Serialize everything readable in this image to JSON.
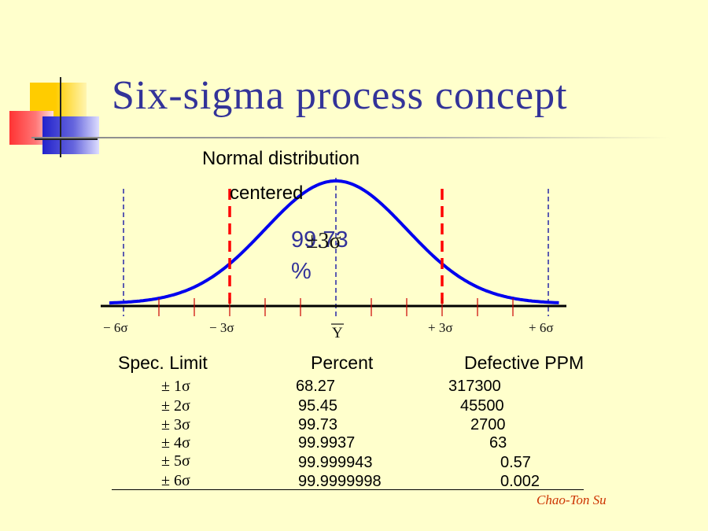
{
  "title": "Six-sigma process concept",
  "chart": {
    "heading_line1": "Normal distribution",
    "heading_line2": "centered",
    "inner_percent": "99.73",
    "inner_percent_unit": "%",
    "inner_sigma": "±3σ",
    "axis_labels": {
      "minus6": "− 6σ",
      "minus3": "− 3σ",
      "mean": "Y",
      "plus3": "+ 3σ",
      "plus6": "+ 6σ"
    },
    "colors": {
      "curve": "#0000EE",
      "spec_limit": "#FF0000",
      "guide": "#3333AA",
      "axis": "#000000",
      "tick": "#CC0000"
    }
  },
  "table": {
    "headers": {
      "spec": "Spec. Limit",
      "percent": "Percent",
      "ppm": "Defective PPM"
    },
    "rows": [
      {
        "spec": "± 1σ",
        "percent": "68.27",
        "ppm": "317300"
      },
      {
        "spec": "± 2σ",
        "percent": "95.45",
        "ppm": "45500"
      },
      {
        "spec": "± 3σ",
        "percent": "99.73",
        "ppm": "2700"
      },
      {
        "spec": "± 4σ",
        "percent": "99.9937",
        "ppm": "63"
      },
      {
        "spec": "± 5σ",
        "percent": "99.999943",
        "ppm": "0.57"
      },
      {
        "spec": "± 6σ",
        "percent": "99.9999998",
        "ppm": "0.002"
      }
    ]
  },
  "author": "Chao-Ton Su",
  "decor_colors": {
    "yellow": "#FFCC00",
    "red": "#FF3333",
    "blue": "#3333CC",
    "title": "#333399",
    "background": "#FFFFCC"
  }
}
